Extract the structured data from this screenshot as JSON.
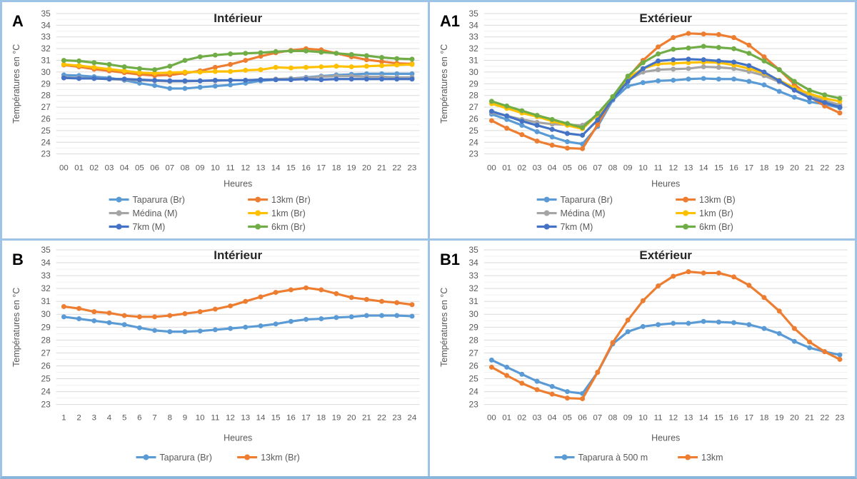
{
  "figure": {
    "background": "#FFFFFF",
    "border_color": "#9DC3E6",
    "tick_color": "#595959",
    "title_color": "#262626",
    "panel_label_color": "#000000",
    "grid_major_color": "#D9D9D9",
    "grid_minor_color": "#F1F1F1"
  },
  "chart_data": [
    {
      "panel_label": "A",
      "type": "line",
      "title": "Intérieur",
      "xlabel": "Heures",
      "ylabel": "Températures en °C",
      "ylim": [
        23,
        35
      ],
      "ytick_step": 1,
      "grid": "major+minor(0.5)",
      "legend_position": "bottom",
      "legend_columns": 2,
      "x_labels": [
        "00",
        "01",
        "02",
        "03",
        "04",
        "05",
        "06",
        "07",
        "08",
        "09",
        "10",
        "11",
        "12",
        "13",
        "14",
        "15",
        "16",
        "17",
        "18",
        "19",
        "20",
        "21",
        "22",
        "23"
      ],
      "series": [
        {
          "name": "Taparura (Br)",
          "color": "#5B9BD5",
          "values": [
            29.75,
            29.7,
            29.6,
            29.5,
            29.3,
            29.05,
            28.85,
            28.6,
            28.6,
            28.7,
            28.8,
            28.9,
            29.05,
            29.25,
            29.35,
            29.45,
            29.55,
            29.65,
            29.75,
            29.8,
            29.85,
            29.85,
            29.85,
            29.85
          ]
        },
        {
          "name": "13km (Br)",
          "color": "#ED7D31",
          "values": [
            30.6,
            30.45,
            30.25,
            30.1,
            29.95,
            29.8,
            29.7,
            29.75,
            29.9,
            30.1,
            30.4,
            30.65,
            31.0,
            31.35,
            31.65,
            31.85,
            32.0,
            31.9,
            31.6,
            31.3,
            31.05,
            30.9,
            30.75,
            30.7
          ]
        },
        {
          "name": "Médina (M)",
          "color": "#A5A5A5",
          "values": [
            29.55,
            29.5,
            29.45,
            29.4,
            29.35,
            29.3,
            29.25,
            29.2,
            29.2,
            29.25,
            29.25,
            29.3,
            29.3,
            29.35,
            29.4,
            29.45,
            29.5,
            29.6,
            29.65,
            29.65,
            29.6,
            29.6,
            29.55,
            29.55
          ]
        },
        {
          "name": "1km (Br)",
          "color": "#FFC000",
          "values": [
            30.65,
            30.55,
            30.4,
            30.25,
            30.1,
            29.95,
            29.9,
            29.95,
            30.0,
            30.0,
            30.05,
            30.05,
            30.15,
            30.2,
            30.4,
            30.35,
            30.4,
            30.45,
            30.5,
            30.45,
            30.5,
            30.55,
            30.6,
            30.65
          ]
        },
        {
          "name": "7km (M)",
          "color": "#4472C4",
          "values": [
            29.5,
            29.45,
            29.45,
            29.4,
            29.4,
            29.35,
            29.3,
            29.25,
            29.25,
            29.25,
            29.3,
            29.3,
            29.3,
            29.35,
            29.35,
            29.35,
            29.4,
            29.35,
            29.4,
            29.4,
            29.4,
            29.4,
            29.4,
            29.4
          ]
        },
        {
          "name": "6km (Br)",
          "color": "#70AD47",
          "values": [
            31.0,
            30.95,
            30.8,
            30.65,
            30.45,
            30.3,
            30.2,
            30.5,
            31.0,
            31.3,
            31.45,
            31.55,
            31.6,
            31.65,
            31.75,
            31.8,
            31.8,
            31.7,
            31.6,
            31.5,
            31.4,
            31.25,
            31.15,
            31.1
          ]
        }
      ]
    },
    {
      "panel_label": "A1",
      "type": "line",
      "title": "Extérieur",
      "xlabel": "Heures",
      "ylabel": "Températures en °C",
      "ylim": [
        23,
        35
      ],
      "ytick_step": 1,
      "grid": "major+minor(0.5)",
      "legend_position": "bottom",
      "legend_columns": 2,
      "x_labels": [
        "00",
        "01",
        "02",
        "03",
        "04",
        "05",
        "06",
        "07",
        "08",
        "09",
        "10",
        "11",
        "12",
        "13",
        "14",
        "15",
        "16",
        "17",
        "18",
        "19",
        "20",
        "21",
        "22",
        "23"
      ],
      "series": [
        {
          "name": "Taparura (Br)",
          "color": "#5B9BD5",
          "values": [
            26.4,
            25.95,
            25.45,
            24.9,
            24.45,
            24.05,
            23.85,
            25.35,
            27.6,
            28.8,
            29.1,
            29.25,
            29.3,
            29.4,
            29.45,
            29.4,
            29.4,
            29.2,
            28.9,
            28.35,
            27.85,
            27.45,
            27.25,
            26.95
          ]
        },
        {
          "name": "13km (B)",
          "color": "#ED7D31",
          "values": [
            25.85,
            25.2,
            24.65,
            24.1,
            23.75,
            23.5,
            23.45,
            25.5,
            27.8,
            29.55,
            31.0,
            32.15,
            32.95,
            33.3,
            33.25,
            33.2,
            32.95,
            32.3,
            31.3,
            30.2,
            28.95,
            27.9,
            27.1,
            26.5
          ]
        },
        {
          "name": "Médina (M)",
          "color": "#A5A5A5",
          "values": [
            26.55,
            26.25,
            25.95,
            25.7,
            25.55,
            25.5,
            25.45,
            26.3,
            27.75,
            29.3,
            30.0,
            30.2,
            30.25,
            30.3,
            30.45,
            30.4,
            30.3,
            30.05,
            29.7,
            29.15,
            28.5,
            27.95,
            27.55,
            27.2
          ]
        },
        {
          "name": "1km (Br)",
          "color": "#FFC000",
          "values": [
            27.3,
            26.9,
            26.5,
            26.2,
            25.8,
            25.45,
            25.15,
            26.35,
            27.85,
            29.5,
            30.3,
            30.7,
            30.75,
            30.8,
            30.85,
            30.8,
            30.6,
            30.3,
            29.9,
            29.3,
            28.65,
            28.15,
            27.75,
            27.5
          ]
        },
        {
          "name": "7km (M)",
          "color": "#4472C4",
          "values": [
            26.65,
            26.25,
            25.8,
            25.45,
            25.1,
            24.75,
            24.6,
            25.9,
            27.7,
            29.2,
            30.3,
            30.95,
            31.05,
            31.1,
            31.05,
            30.95,
            30.85,
            30.55,
            30.0,
            29.25,
            28.45,
            27.8,
            27.4,
            27.0
          ]
        },
        {
          "name": "6km (Br)",
          "color": "#70AD47",
          "values": [
            27.5,
            27.1,
            26.7,
            26.3,
            25.95,
            25.6,
            25.25,
            26.45,
            27.9,
            29.65,
            30.8,
            31.55,
            31.95,
            32.05,
            32.2,
            32.1,
            32.0,
            31.6,
            30.95,
            30.2,
            29.2,
            28.45,
            28.05,
            27.75
          ]
        }
      ]
    },
    {
      "panel_label": "B",
      "type": "line",
      "title": "Intérieur",
      "xlabel": "Heures",
      "ylabel": "Températures en °C",
      "ylim": [
        23,
        35
      ],
      "ytick_step": 1,
      "grid": "major+minor(0.5)",
      "legend_position": "bottom",
      "legend_columns": 2,
      "x_labels": [
        "1",
        "2",
        "3",
        "4",
        "5",
        "6",
        "7",
        "8",
        "9",
        "10",
        "11",
        "12",
        "13",
        "14",
        "15",
        "16",
        "17",
        "18",
        "19",
        "20",
        "21",
        "22",
        "23",
        "24"
      ],
      "series": [
        {
          "name": "Taparura (Br)",
          "color": "#5B9BD5",
          "values": [
            29.8,
            29.65,
            29.5,
            29.35,
            29.2,
            28.95,
            28.75,
            28.65,
            28.65,
            28.7,
            28.8,
            28.9,
            29.0,
            29.1,
            29.25,
            29.45,
            29.6,
            29.65,
            29.75,
            29.8,
            29.9,
            29.9,
            29.9,
            29.85
          ]
        },
        {
          "name": "13km (Br)",
          "color": "#ED7D31",
          "values": [
            30.6,
            30.45,
            30.2,
            30.1,
            29.9,
            29.8,
            29.8,
            29.9,
            30.05,
            30.2,
            30.4,
            30.65,
            31.0,
            31.35,
            31.7,
            31.9,
            32.05,
            31.9,
            31.6,
            31.3,
            31.15,
            31.0,
            30.9,
            30.75
          ]
        }
      ]
    },
    {
      "panel_label": "B1",
      "type": "line",
      "title": "Extérieur",
      "xlabel": "Heures",
      "ylabel": "Températures en °C",
      "ylim": [
        23,
        35
      ],
      "ytick_step": 1,
      "grid": "major+minor(0.5)",
      "legend_position": "bottom",
      "legend_columns": 2,
      "x_labels": [
        "00",
        "01",
        "02",
        "03",
        "04",
        "05",
        "06",
        "07",
        "08",
        "09",
        "10",
        "11",
        "12",
        "13",
        "14",
        "15",
        "16",
        "17",
        "18",
        "19",
        "20",
        "21",
        "22",
        "23"
      ],
      "series": [
        {
          "name": "Taparura à 500 m",
          "color": "#5B9BD5",
          "values": [
            26.45,
            25.9,
            25.35,
            24.8,
            24.4,
            24.0,
            23.85,
            25.5,
            27.7,
            28.65,
            29.05,
            29.2,
            29.3,
            29.3,
            29.45,
            29.4,
            29.35,
            29.2,
            28.9,
            28.5,
            27.9,
            27.4,
            27.1,
            26.85
          ]
        },
        {
          "name": "13km",
          "color": "#ED7D31",
          "values": [
            25.9,
            25.25,
            24.65,
            24.15,
            23.8,
            23.5,
            23.45,
            25.5,
            27.8,
            29.55,
            31.05,
            32.2,
            32.95,
            33.3,
            33.2,
            33.2,
            32.9,
            32.25,
            31.3,
            30.25,
            28.9,
            27.85,
            27.1,
            26.5
          ]
        }
      ]
    }
  ]
}
